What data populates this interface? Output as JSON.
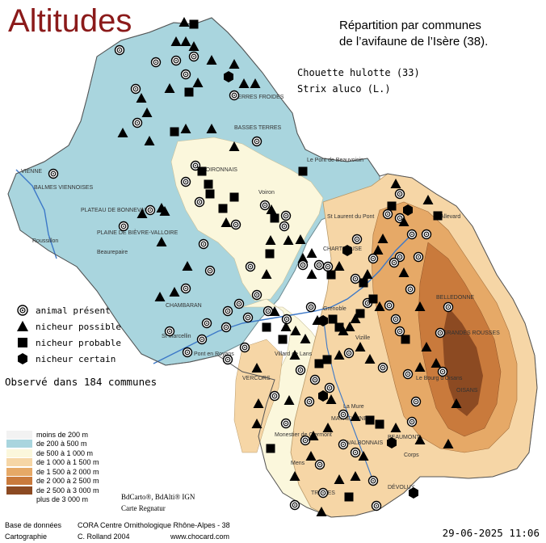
{
  "title": "Altitudes",
  "heading": {
    "line1": "Répartition par communes",
    "line2": "de l’avifaune de l’Isère (38)."
  },
  "species": {
    "common_name": "Chouette hulotte  (33)",
    "latin_name": "Strix aluco (L.)"
  },
  "legend": [
    {
      "symbol": "circle-icon",
      "label": "animal présent"
    },
    {
      "symbol": "triangle-icon",
      "label": "nicheur possible"
    },
    {
      "symbol": "square-icon",
      "label": "nicheur probable"
    },
    {
      "symbol": "hexagon-icon",
      "label": "nicheur certain"
    }
  ],
  "observation_count": "Observé dans 184 communes",
  "altitude_legend": [
    {
      "label": "moins de 200 m",
      "color": "#f2f2f2"
    },
    {
      "label": "de 200 à 500 m",
      "color": "#a9d5de"
    },
    {
      "label": "de 500 à 1 000 m",
      "color": "#fbf7dc"
    },
    {
      "label": "de 1 000 à 1 500 m",
      "color": "#f6d6a6"
    },
    {
      "label": "de 1 500 à 2 000 m",
      "color": "#e6a967"
    },
    {
      "label": "de 2 000 à 2 500 m",
      "color": "#c97a3c"
    },
    {
      "label": "de 2 500 à 3 000 m",
      "color": "#8c4a22"
    },
    {
      "label": "plus de 3 000 m",
      "color": "#ffffff"
    }
  ],
  "map_credits": {
    "line1": "BdCarto®, BdAlti® IGN",
    "line2": "Carte Regnatur"
  },
  "footer": {
    "base_label": "Base de données",
    "base_value": "CORA Centre Ornithologique Rhône-Alpes - 38",
    "carto_label": "Cartographie",
    "carto_value": "C. Rolland 2004",
    "website": "www.chocard.com"
  },
  "date": "29-06-2025 11:06",
  "colors": {
    "title": "#8b1a1a",
    "plain": "#a9d5de",
    "hills": "#fbf7dc",
    "mid_mountain": "#f6d6a6",
    "mountain": "#e6a967",
    "high_mountain": "#c97a3c",
    "peaks": "#8c4a22"
  },
  "places": [
    "VIENNE",
    "BALMES VIENNOISES",
    "PLATEAU DE BONNEVAUX",
    "PLAINE DE BIÈVRE-VALLOIRE",
    "CHAMBARAN",
    "VOIRONNAIS",
    "CHARTREUSE",
    "BELLEDONNE",
    "VERCORS",
    "TRIÈVES",
    "MATHEYSINE",
    "OISANS",
    "BEAUMONT",
    "VALBONNAIS",
    "DÉVOLUY",
    "GRANDES ROUSSES",
    "TERRES FROIDES",
    "BASSES TERRES",
    "Le Pont de Beauvoisin",
    "St Laurent du Pont",
    "Grenoble",
    "Vizille",
    "La Mure",
    "Corps",
    "Mens",
    "Allevard",
    "Le Bourg d'Oisans",
    "Voiron",
    "Roussillon",
    "Beaurepaire",
    "St Marcellin",
    "Pont en Royans",
    "Villard de Lans",
    "Monestier de Clermont"
  ]
}
